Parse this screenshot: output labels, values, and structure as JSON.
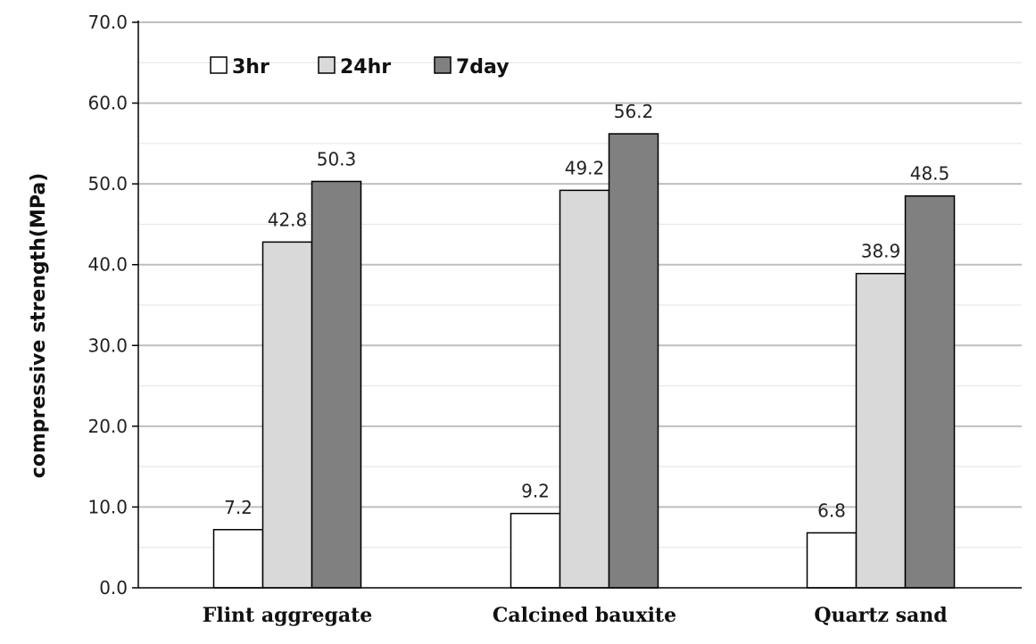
{
  "chart_data": {
    "type": "bar",
    "categories": [
      "Flint aggregate",
      "Calcined bauxite",
      "Quartz sand"
    ],
    "series": [
      {
        "name": "3hr",
        "values": [
          7.2,
          9.2,
          6.8
        ],
        "color": "#ffffff"
      },
      {
        "name": "24hr",
        "values": [
          42.8,
          49.2,
          38.9
        ],
        "color": "#d9d9d9"
      },
      {
        "name": "7day",
        "values": [
          50.3,
          56.2,
          48.5
        ],
        "color": "#808080"
      }
    ],
    "data_labels": [
      [
        "7.2",
        "9.2",
        "6.8"
      ],
      [
        "42.8",
        "49.2",
        "38.9"
      ],
      [
        "50.3",
        "56.2",
        "48.5"
      ]
    ],
    "ylabel": "compressive strength(MPa)",
    "ylim": [
      0,
      70
    ],
    "yticks": [
      "0.0",
      "10.0",
      "20.0",
      "30.0",
      "40.0",
      "50.0",
      "60.0",
      "70.0"
    ],
    "ytick_values": [
      0,
      10,
      20,
      30,
      40,
      50,
      60,
      70
    ],
    "grid": "horizontal",
    "legend_position": "top-left",
    "bar_edge_color": "#000000",
    "grid_color": "#bfbfbf"
  }
}
